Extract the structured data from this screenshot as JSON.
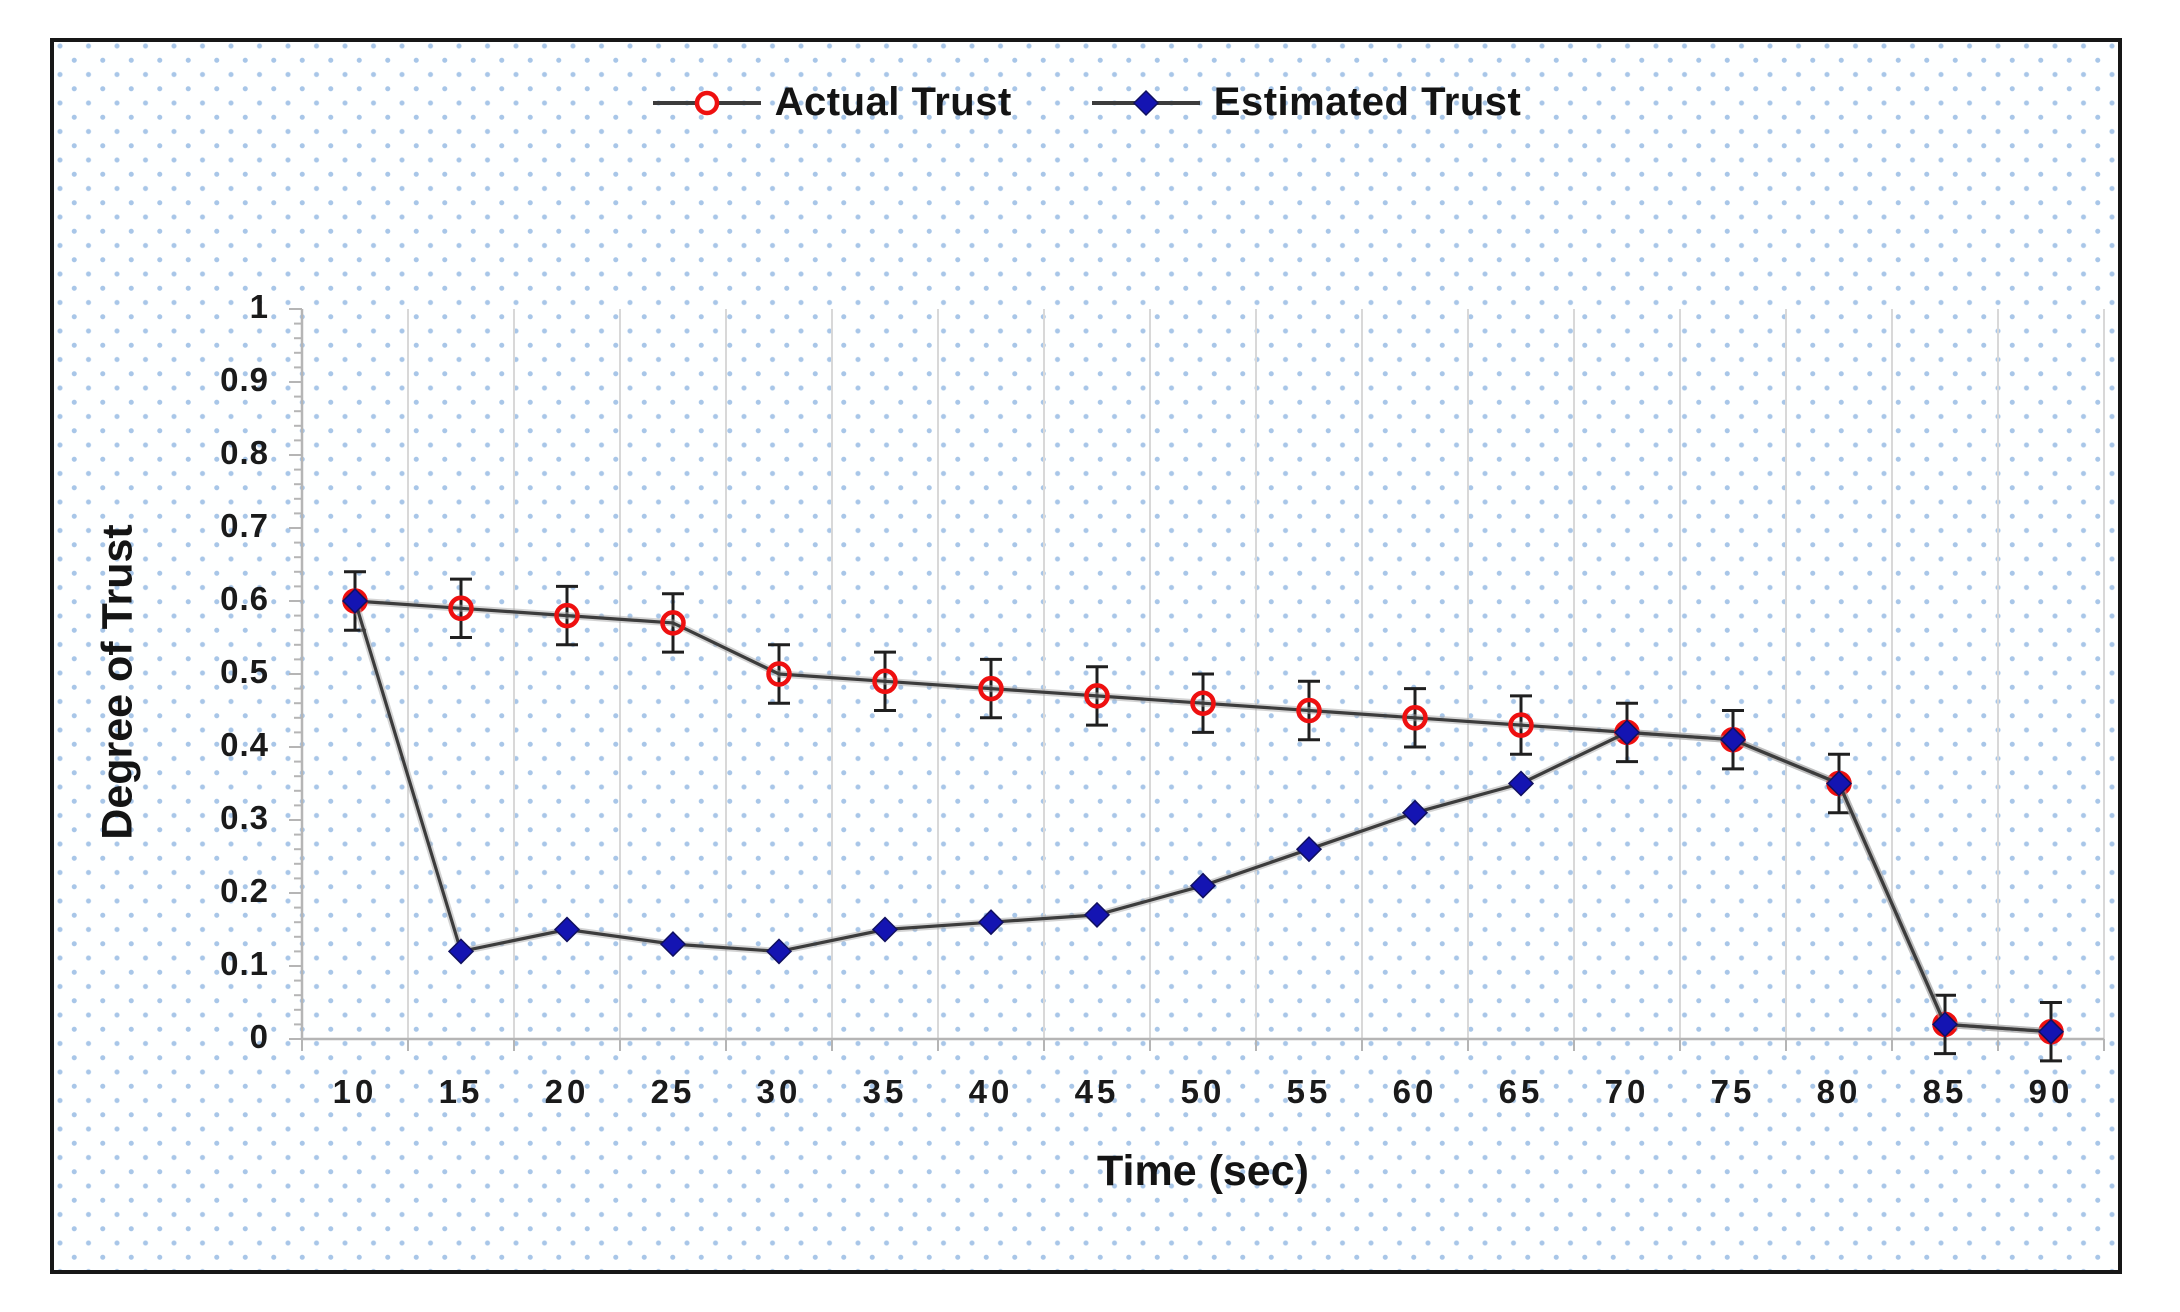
{
  "chart_data": {
    "type": "line",
    "title": "",
    "xlabel": "Time (sec)",
    "ylabel": "Degree of Trust",
    "x": [
      10,
      15,
      20,
      25,
      30,
      35,
      40,
      45,
      50,
      55,
      60,
      65,
      70,
      75,
      80,
      85,
      90
    ],
    "y_tick_labels": [
      "0",
      "0.1",
      "0.2",
      "0.3",
      "0.4",
      "0.5",
      "0.6",
      "0.7",
      "0.8",
      "0.9",
      "1"
    ],
    "ylim": [
      0,
      1
    ],
    "y_minor_tick_step": 0.02,
    "grid": "vertical gridlines at category boundaries",
    "legend_position": "top-center",
    "background_style": "white with light-blue dot lattice",
    "series": [
      {
        "name": "Actual Trust",
        "marker": "open-circle",
        "marker_color": "#ee1010",
        "line_color": "#3c3c3c",
        "error_bar": 0.04,
        "values": [
          0.6,
          0.59,
          0.58,
          0.57,
          0.5,
          0.49,
          0.48,
          0.47,
          0.46,
          0.45,
          0.44,
          0.43,
          0.42,
          0.41,
          0.35,
          0.02,
          0.01
        ]
      },
      {
        "name": "Estimated Trust",
        "marker": "filled-diamond",
        "marker_color": "#1414b2",
        "line_color": "#3c3c3c",
        "error_bar": 0,
        "values": [
          0.6,
          0.12,
          0.15,
          0.13,
          0.12,
          0.15,
          0.16,
          0.17,
          0.21,
          0.26,
          0.31,
          0.35,
          0.42,
          0.41,
          0.35,
          0.02,
          0.01
        ]
      }
    ],
    "colors": {
      "gridline": "#d8d8d8",
      "axis": "#b5b5b5",
      "error_bar": "#1f1f1f",
      "line_glow": "#a8a8a8",
      "dot_pattern": "#a8c6e8",
      "text": "#1a1a1a",
      "frame_border": "#171717"
    }
  }
}
